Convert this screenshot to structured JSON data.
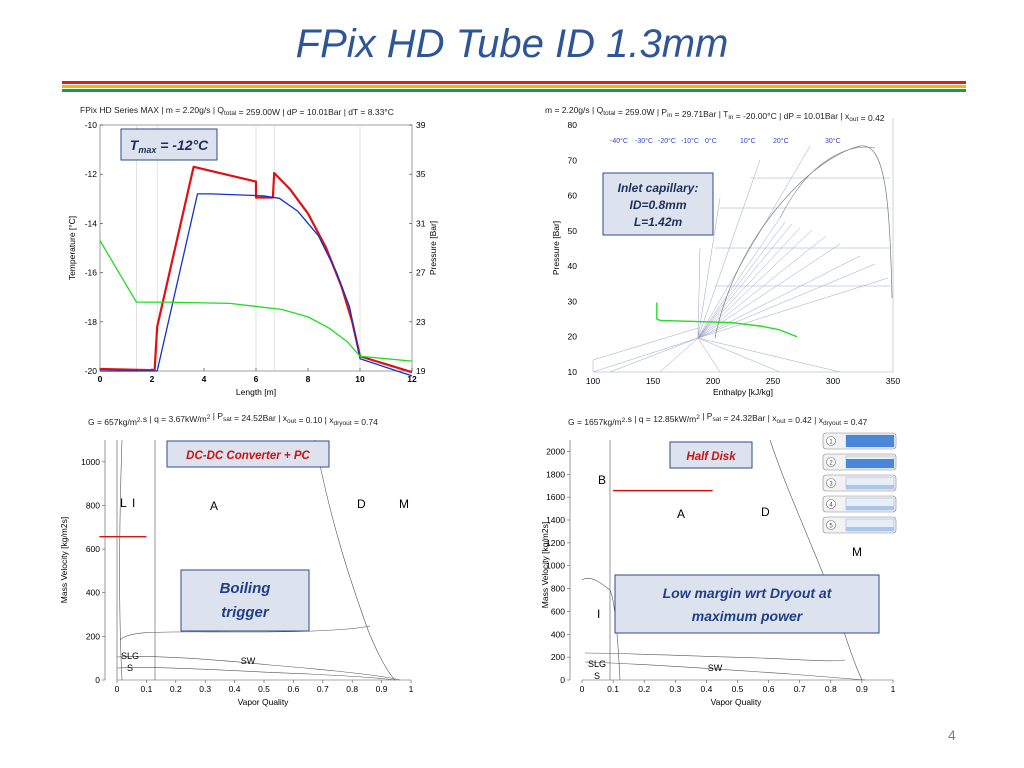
{
  "slide": {
    "title": "FPix HD Tube ID 1.3mm",
    "page_number": "4",
    "rule_colors": [
      "#e11b1b",
      "#f2b705",
      "#1f9a3a"
    ]
  },
  "chart_data": [
    {
      "type": "line",
      "title": "FPix HD Series MAX | m = 2.20g/s | Q_total = 259.00W | dP = 10.01Bar | dT = 8.33°C",
      "xlabel": "Length [m]",
      "ylabel": "Temperature [°C]",
      "y2label": "Pressure [Bar]",
      "xlim": [
        0,
        12
      ],
      "ylim": [
        -20,
        -10
      ],
      "y2lim": [
        19,
        39
      ],
      "xticks": [
        0,
        2,
        4,
        6,
        8,
        10,
        12
      ],
      "yticks": [
        -20,
        -18,
        -16,
        -14,
        -12,
        -10
      ],
      "y2ticks": [
        19,
        23,
        27,
        31,
        35,
        39
      ],
      "annotation": "T_max = -12°C",
      "series": [
        {
          "color": "#dd1111",
          "x": [
            0,
            2.1,
            2.2,
            3.6,
            6.0,
            6.0,
            6.65,
            6.7,
            7.3,
            8.0,
            8.7,
            9.3,
            9.7,
            10.0,
            12
          ],
          "y": [
            -19.92,
            -19.97,
            -18.2,
            -11.7,
            -12.3,
            -12.95,
            -12.95,
            -11.95,
            -12.6,
            -13.6,
            -15.0,
            -16.6,
            -18.0,
            -19.4,
            -20.05
          ]
        },
        {
          "color": "#1133cc",
          "x": [
            0,
            2.2,
            3.75,
            4.3,
            5.3,
            6.3,
            6.9,
            7.6,
            8.4,
            9.1,
            9.6,
            10.0,
            12
          ],
          "y": [
            -20.0,
            -20.0,
            -12.8,
            -12.8,
            -12.84,
            -12.88,
            -12.98,
            -13.5,
            -14.5,
            -16.0,
            -17.4,
            -19.5,
            -20.2
          ]
        },
        {
          "color": "#22dd22",
          "x": [
            0,
            1.4,
            2.5,
            5.0,
            7.0,
            8.0,
            8.8,
            9.5,
            10.0,
            11.0,
            12
          ],
          "y": [
            -14.7,
            -17.2,
            -17.2,
            -17.25,
            -17.5,
            -17.8,
            -18.25,
            -18.8,
            -19.4,
            -19.5,
            -19.6
          ]
        }
      ]
    },
    {
      "type": "line",
      "title": "m = 2.20g/s | Q_total = 259.0W | P_in = 29.71Bar | T_in = -20.00°C | dP = 10.01Bar | x_out = 0.42",
      "xlabel": "Enthalpy [kJ/kg]",
      "ylabel": "Pressure [Bar]",
      "xlim": [
        100,
        350
      ],
      "ylim": [
        10,
        80
      ],
      "xticks": [
        100,
        150,
        200,
        250,
        300,
        350
      ],
      "yticks": [
        10,
        20,
        30,
        40,
        50,
        60,
        70,
        80
      ],
      "isotherm_labels": [
        "-40°C",
        "-30°C",
        "-20°C",
        "-10°C",
        "0°C",
        "10°C",
        "20°C",
        "30°C"
      ],
      "annotation": [
        "Inlet capillary:",
        "ID=0.8mm",
        "L=1.42m"
      ],
      "series": [
        {
          "color": "#22dd22",
          "x": [
            153.2,
            153.2,
            156,
            215,
            240,
            255,
            270
          ],
          "y": [
            29.7,
            25,
            24.6,
            24.0,
            23.0,
            22.0,
            20.0
          ]
        }
      ]
    },
    {
      "type": "line",
      "title": "G = 657kg/m2.s | q = 3.67kW/m2 | P_sat = 24.52Bar | x_out = 0.10 | x_dryout = 0.74",
      "xlabel": "Vapor Quality",
      "ylabel": "Mass Velocity [kg/m2s]",
      "xlim": [
        0,
        1
      ],
      "ylim": [
        0,
        1100
      ],
      "xticks": [
        0,
        0.1,
        0.2,
        0.3,
        0.4,
        0.5,
        0.6,
        0.7,
        0.8,
        0.9,
        1
      ],
      "yticks": [
        0,
        200,
        400,
        600,
        800,
        1000
      ],
      "regions": [
        "L",
        "I",
        "A",
        "D",
        "M",
        "SLG",
        "S",
        "SW"
      ],
      "operating_line": {
        "color": "#dd1111",
        "x": [
          -0.06,
          0.1
        ],
        "y": [
          657,
          657
        ]
      },
      "labels": [
        "DC-DC Converter + PC",
        "Boiling",
        "trigger"
      ]
    },
    {
      "type": "line",
      "title": "G = 1657kg/m2.s | q = 12.85kW/m2 | P_sat = 24.32Bar | x_out = 0.42 | x_dryout = 0.47",
      "xlabel": "Vapor Quality",
      "ylabel": "Mass Velocity [kg/m2s]",
      "xlim": [
        0,
        1
      ],
      "ylim": [
        0,
        2100
      ],
      "xticks": [
        0,
        0.1,
        0.2,
        0.3,
        0.4,
        0.5,
        0.6,
        0.7,
        0.8,
        0.9,
        1
      ],
      "yticks": [
        0,
        200,
        400,
        600,
        800,
        1000,
        1200,
        1400,
        1600,
        1800,
        2000
      ],
      "regions": [
        "B",
        "A",
        "D",
        "M",
        "I",
        "SLG",
        "S",
        "SW"
      ],
      "operating_line": {
        "color": "#dd1111",
        "x": [
          0.1,
          0.42
        ],
        "y": [
          1657,
          1657
        ]
      },
      "labels": [
        "Half Disk",
        "Low margin wrt Dryout at",
        "maximum power"
      ],
      "flow_pattern_icons": [
        "1",
        "2",
        "3",
        "4",
        "5"
      ]
    }
  ]
}
